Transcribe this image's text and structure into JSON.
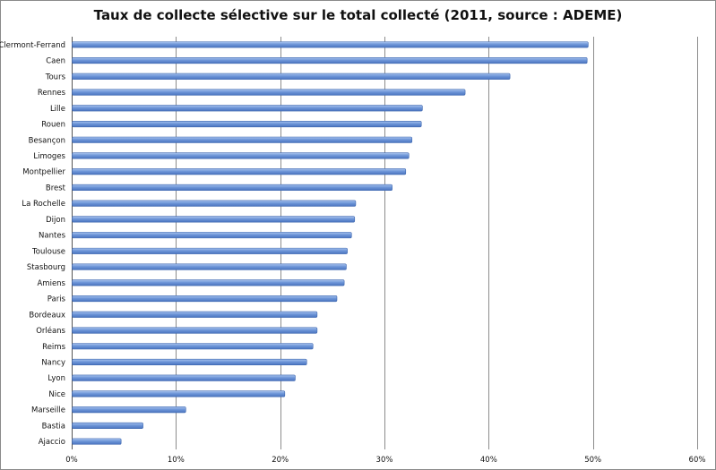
{
  "chart_data": {
    "type": "bar",
    "orientation": "horizontal",
    "title": "Taux de collecte sélective sur le total collecté (2011, source : ADEME)",
    "categories": [
      "Clermont-Ferrand",
      "Caen",
      "Tours",
      "Rennes",
      "Lille",
      "Rouen",
      "Besançon",
      "Limoges",
      "Montpellier",
      "Brest",
      "La Rochelle",
      "Dijon",
      "Nantes",
      "Toulouse",
      "Stasbourg",
      "Amiens",
      "Paris",
      "Bordeaux",
      "Orléans",
      "Reims",
      "Nancy",
      "Lyon",
      "Nice",
      "Marseille",
      "Bastia",
      "Ajaccio"
    ],
    "values": [
      49.5,
      49.4,
      42.0,
      37.7,
      33.6,
      33.5,
      32.6,
      32.3,
      32.0,
      30.7,
      27.2,
      27.1,
      26.8,
      26.4,
      26.3,
      26.1,
      25.4,
      23.5,
      23.5,
      23.1,
      22.5,
      21.4,
      20.4,
      10.9,
      6.8,
      4.7
    ],
    "xlim": [
      0,
      60
    ],
    "ticks": [
      "0%",
      "10%",
      "20%",
      "30%",
      "40%",
      "50%",
      "60%"
    ],
    "tick_values": [
      0,
      10,
      20,
      30,
      40,
      50,
      60
    ],
    "grid": "vertical",
    "bar_color": "#6e96d8",
    "bar_edge_color": "#3f68b0"
  }
}
